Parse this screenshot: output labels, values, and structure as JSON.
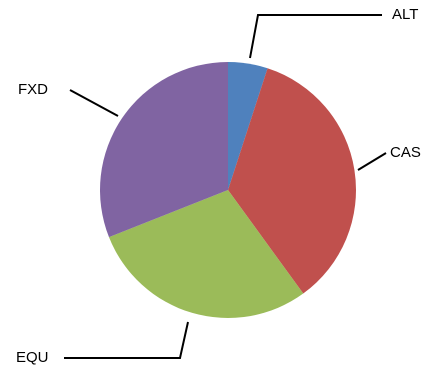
{
  "chart_data": {
    "type": "pie",
    "categories": [
      "ALT",
      "CAS",
      "EQU",
      "FXD"
    ],
    "values": [
      5,
      35,
      29,
      31
    ],
    "colors": [
      "#4f81bd",
      "#c0504d",
      "#9bbb59",
      "#8064a2"
    ]
  }
}
